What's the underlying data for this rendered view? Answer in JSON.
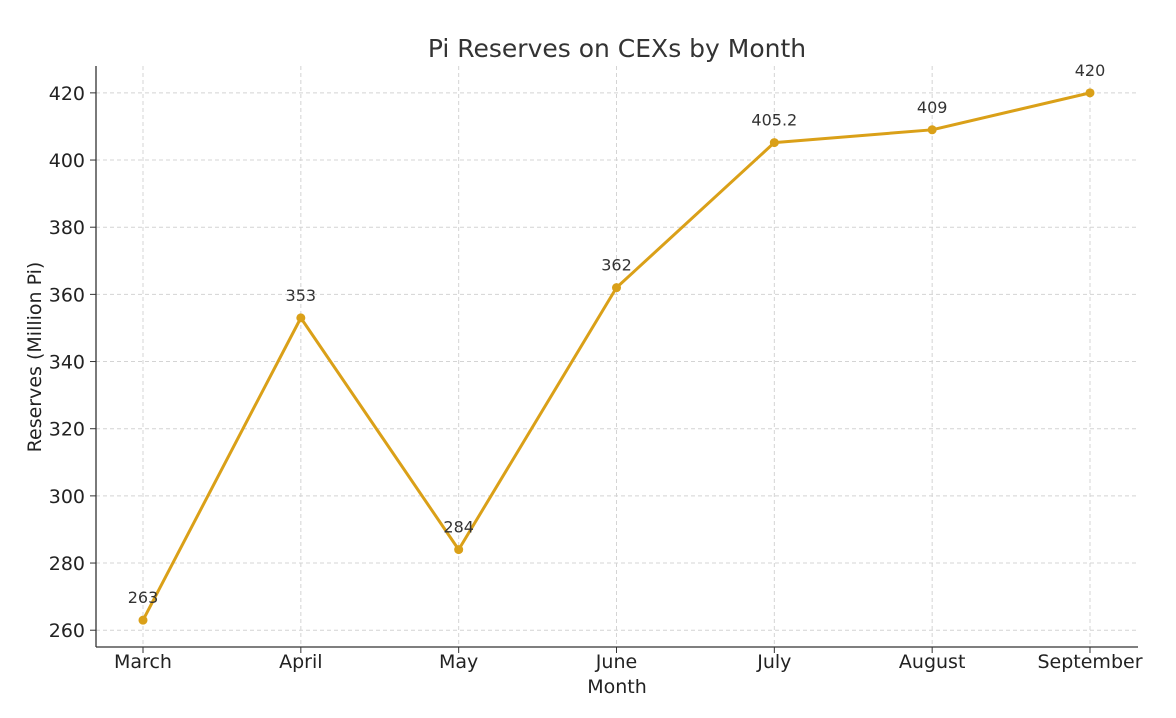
{
  "chart_data": {
    "type": "line",
    "title": "Pi Reserves on CEXs by Month",
    "xlabel": "Month",
    "ylabel": "Reserves (Million Pi)",
    "categories": [
      "March",
      "April",
      "May",
      "June",
      "July",
      "August",
      "September"
    ],
    "series": [
      {
        "values": [
          263,
          353,
          284,
          362,
          405.2,
          409,
          420
        ],
        "color": "#DAA018"
      }
    ],
    "data_labels": [
      "263",
      "353",
      "284",
      "362",
      "405.2",
      "409",
      "420"
    ],
    "ylim": [
      255,
      428
    ],
    "yticks": [
      260,
      280,
      300,
      320,
      340,
      360,
      380,
      400,
      420
    ],
    "grid": true,
    "grid_style": "dashed",
    "legend": "none",
    "markers": true
  }
}
